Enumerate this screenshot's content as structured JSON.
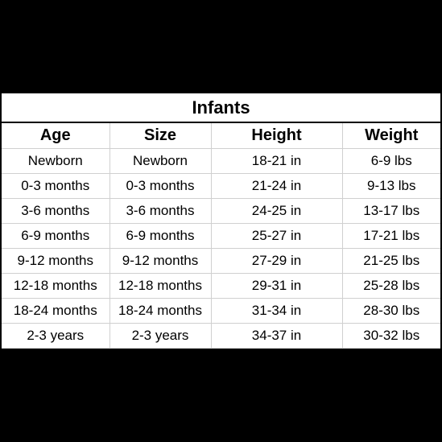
{
  "table": {
    "title": "Infants",
    "columns": [
      "Age",
      "Size",
      "Height",
      "Weight"
    ],
    "rows": [
      [
        "Newborn",
        "Newborn",
        "18-21 in",
        "6-9 lbs"
      ],
      [
        "0-3 months",
        "0-3 months",
        "21-24 in",
        "9-13 lbs"
      ],
      [
        "3-6 months",
        "3-6 months",
        "24-25 in",
        "13-17 lbs"
      ],
      [
        "6-9 months",
        "6-9 months",
        "25-27 in",
        "17-21 lbs"
      ],
      [
        "9-12 months",
        "9-12 months",
        "27-29 in",
        "21-25 lbs"
      ],
      [
        "12-18 months",
        "12-18 months",
        "29-31 in",
        "25-28 lbs"
      ],
      [
        "18-24 months",
        "18-24 months",
        "31-34 in",
        "28-30 lbs"
      ],
      [
        "2-3 years",
        "2-3 years",
        "34-37 in",
        "30-32 lbs"
      ]
    ]
  }
}
